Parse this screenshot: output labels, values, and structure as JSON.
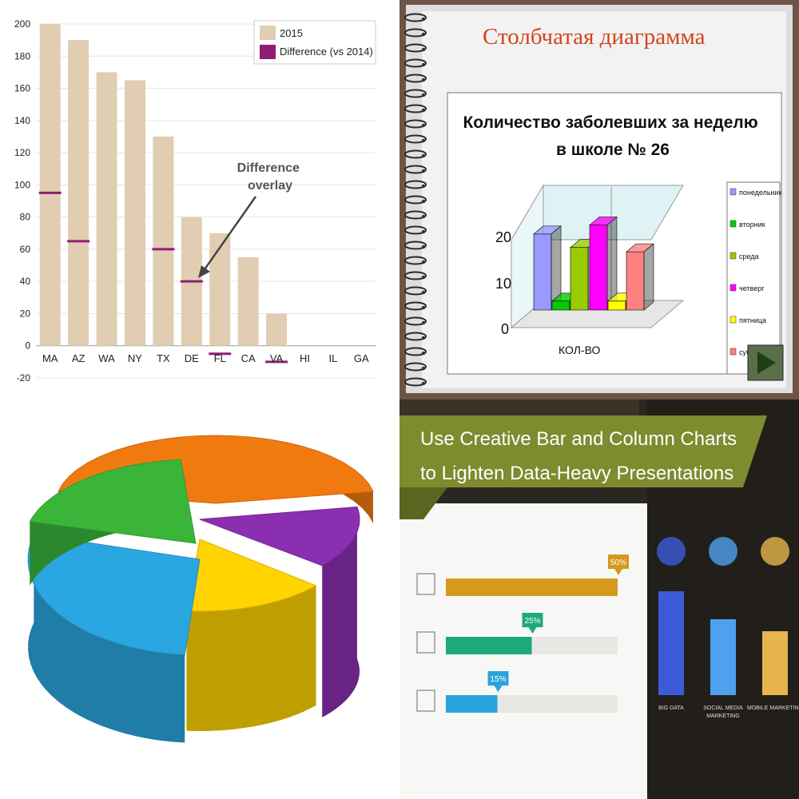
{
  "chart_data": [
    {
      "type": "bar",
      "categories": [
        "MA",
        "AZ",
        "WA",
        "NY",
        "TX",
        "DE",
        "FL",
        "CA",
        "VA",
        "HI",
        "IL",
        "GA"
      ],
      "series": [
        {
          "name": "2015",
          "values": [
            200,
            190,
            170,
            165,
            130,
            80,
            70,
            55,
            20,
            null,
            null,
            null
          ]
        },
        {
          "name": "Difference (vs 2014)",
          "values": [
            95,
            65,
            null,
            null,
            60,
            40,
            -5,
            null,
            -10,
            null,
            null,
            null
          ]
        }
      ],
      "ylim": [
        -20,
        200
      ],
      "yticks": [
        -20,
        0,
        20,
        40,
        60,
        80,
        100,
        120,
        140,
        160,
        180,
        200
      ],
      "grid": true,
      "legend": "top-right",
      "annotation": "Difference overlay",
      "colors": {
        "bars": "#e1cdb1",
        "difference": "#8e1e74",
        "arrow": "#444444"
      }
    },
    {
      "type": "bar",
      "slide_title": "Столбчатая диаграмма",
      "title": "Количество заболевших за неделю в школе № 26",
      "categories": [
        "КОЛ-ВО"
      ],
      "series": [
        {
          "name": "понедельник",
          "values": [
            17
          ]
        },
        {
          "name": "вторник",
          "values": [
            2
          ]
        },
        {
          "name": "среда",
          "values": [
            14
          ]
        },
        {
          "name": "четверг",
          "values": [
            19
          ]
        },
        {
          "name": "пятница",
          "values": [
            2
          ]
        },
        {
          "name": "суббота",
          "values": [
            13
          ]
        }
      ],
      "yticks": [
        0,
        10,
        20
      ],
      "ylim": [
        0,
        25
      ],
      "legend": "right",
      "colors": [
        "#9999ff",
        "#00cc00",
        "#99cc00",
        "#ff00ff",
        "#ffff00",
        "#ff8080"
      ]
    },
    {
      "type": "pie",
      "slices": [
        {
          "color": "#f07a10"
        },
        {
          "color": "#8a2fb0"
        },
        {
          "color": "#ffd400"
        },
        {
          "color": "#2aa7e0"
        },
        {
          "color": "#3ab53a"
        }
      ]
    },
    {
      "type": "bar",
      "title": "Use Creative Bar and Column Charts to Lighten Data-Heavy Presentations",
      "bars_horizontal": [
        {
          "value": 50,
          "label": "50%",
          "color": "#d49a1c"
        },
        {
          "value": 25,
          "label": "25%",
          "color": "#1ea97c"
        },
        {
          "value": 15,
          "label": "15%",
          "color": "#2ba3dd"
        }
      ],
      "columns": [
        {
          "label": "BIG DATA",
          "color": "#3b5bd9"
        },
        {
          "label": "SOCIAL MEDIA MARKETING",
          "color": "#4fa0ee"
        },
        {
          "label": "MOBILE MARKETING",
          "color": "#e7b54e"
        }
      ]
    }
  ]
}
